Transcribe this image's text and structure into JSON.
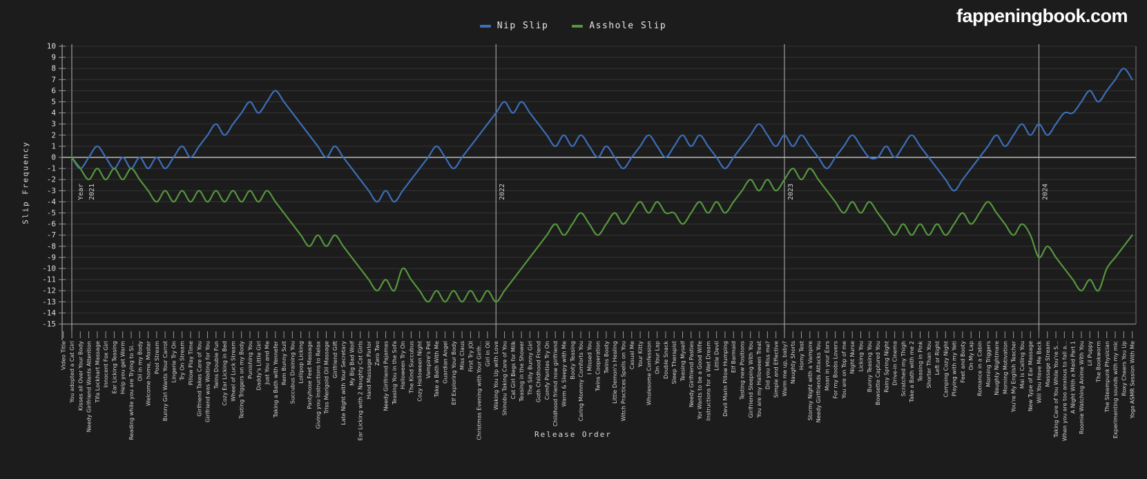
{
  "site": {
    "logo_text": "fappeningbook.com"
  },
  "legend": [
    {
      "label": "Nip Slip",
      "color": "#3d6eb8"
    },
    {
      "label": "Asshole Slip",
      "color": "#55973d"
    }
  ],
  "colors": {
    "background": "#1c1c1c",
    "grid": "#353535",
    "zero_line": "#969696",
    "axis": "#9a9a9a",
    "year_line": "#b8b8b8",
    "tick_text": "#dcdcdc",
    "label_text": "#d6d6d6",
    "nip_slip": "#3d6eb8",
    "asshole_slip": "#55973d"
  },
  "chart_data": {
    "type": "line",
    "title": "",
    "xlabel": "Release Order",
    "ylabel": "Slip Frequency",
    "ylim": [
      -15,
      10
    ],
    "y_ticks": [
      10,
      9,
      8,
      7,
      6,
      5,
      4,
      3,
      2,
      1,
      0,
      -1,
      -2,
      -3,
      -4,
      -5,
      -6,
      -7,
      -8,
      -9,
      -10,
      -11,
      -12,
      -13,
      -14,
      -15
    ],
    "grid": true,
    "legend_position": "top-center",
    "categories": [
      "Video Title",
      "You adopted a Cat Girl",
      "Kisses all Over Your Body",
      "Needy Girlfriend Wants Attention",
      "Tifa Lockhart Massage",
      "Innocent Fox Girl",
      "Ear Licking Teasing",
      "Help you get Warm",
      "Reading while you are Trying to Sl...",
      "Oil in my Body",
      "Welcome home, Master",
      "Pool Stream",
      "Bunny Girl Wants Your Carrot",
      "Lingerie Try On",
      "Try On Stream",
      "Pillow Play Time",
      "Girlfriend Takes Care of You",
      "Girlfriend was Waiting for You",
      "Twins Double Fun",
      "Cozy Ear Licking in Bed",
      "Wheel of Luck Stream",
      "Testing Triggers on my Body",
      "Punishing You",
      "Daddy's Little Girl",
      "Just You and Me",
      "Taking a Bath with Yennefer",
      "Rem Bunny Suit",
      "Succubus Draining You",
      "Lollipop Licking",
      "Pantyhose Feet Massage",
      "Giving you Instructions to Relax",
      "Triss Merigold Oil Massage",
      "Girlfriend Gift",
      "Late Night with Your Secretary",
      "My Big Bad Wolf",
      "Ear Licking with 2 Naughty Cat Girls",
      "Hand Massage Parlor",
      "Zero Two",
      "Needy Girlfriend Pajamas",
      "Teasing You in the Sofa",
      "Halloween Try On",
      "The Kind Succubus",
      "Cozy Halloween Night",
      "Vampire's Pet",
      "Take a Bath With Me",
      "Guardian Angel",
      "Elf Exploring Your Body",
      "Miss Claus",
      "First Try JOI",
      "Christmas Evening with Your Girlfr...",
      "Girl in Oil",
      "Waking You Up with Love",
      "Shinobu Taking Care of You",
      "Cat Girl Begs for Milk",
      "Teasing in the Shower",
      "The Silly Bunny Girl",
      "Goth Childhood Friend",
      "Comfy Panties Try On",
      "Childhood friend now girlfriend",
      "Warm & Sleepy with Me",
      "Booty Teasing",
      "Caring Mommy Comforts You",
      "I Missed You",
      "Twins Cooperation",
      "Twins Booty",
      "Little Demon's Healing",
      "Witch Practices Spells on You",
      "Casual Me",
      "Your Kitty",
      "Wholesome Confession",
      "On Your Lap",
      "Double Snack",
      "Sleep Therapist",
      "Teasing Myself",
      "Needy Girlfriend Pasties",
      "Yor Wants to be a Good Wife",
      "Instructions for a Wet Dream",
      "Little Devil",
      "Devil Marin Pillow Humping",
      "Elf Barmaid",
      "Testing new Positions",
      "Girlfriend Sleeping With You",
      "You are my Halloween Treat",
      "Did you Miss me?",
      "Simple and Effective",
      "Warm me up, baby?",
      "Naughty Shorts",
      "Horny Test",
      "Stormy Night with a Vampire",
      "Needy Girlfriends Attacks You",
      "Moan in your Ears",
      "For my Boobs Lovers",
      "You are on Top of me",
      "Night Nurse",
      "Licking You",
      "Bunny Teasing You",
      "Bowsette Captured You",
      "Rainy Spring Night",
      "Drive-in Cinema",
      "Scratched my Thigh",
      "Take a Bath with me 2",
      "Teasing in Pink",
      "Shorter Than You",
      "Left or Right",
      "Camping Cozy Night",
      "Playing with my Yeti",
      "Feet and Booty",
      "On My Lap",
      "Romance in a Cabin",
      "Morning Triggers",
      "Naughty Nightmare",
      "Morning Motivation",
      "You're My English Teacher",
      "Mai is Calling You",
      "New Type of Ear Massage",
      "Will You Have Me Back",
      "Massage Stream",
      "Taking Care of You While You're S...",
      "When you are too anxious to fall a...",
      "A Night With a Maid Part 1",
      "Roomie Watching Anime With You",
      "Lil Puppy",
      "The Bookworm",
      "The Steampunk Physician",
      "Experimenting sounds with my mic",
      "Roxy Cheers You Up",
      "Yoga ASMR Session With Me"
    ],
    "series": [
      {
        "name": "Nip Slip",
        "color": "#3d6eb8",
        "start_index": 1,
        "values": [
          0,
          -1,
          0,
          1,
          0,
          -1,
          0,
          -1,
          0,
          -1,
          0,
          -1,
          0,
          1,
          0,
          1,
          2,
          3,
          2,
          3,
          4,
          5,
          4,
          5,
          6,
          5,
          4,
          3,
          2,
          1,
          0,
          1,
          0,
          -1,
          -2,
          -3,
          -4,
          -3,
          -4,
          -3,
          -2,
          -1,
          0,
          1,
          0,
          -1,
          0,
          1,
          2,
          3,
          4,
          5,
          4,
          5,
          4,
          3,
          2,
          1,
          2,
          1,
          2,
          1,
          0,
          1,
          0,
          -1,
          0,
          1,
          2,
          1,
          0,
          1,
          2,
          1,
          2,
          1,
          0,
          -1,
          0,
          1,
          2,
          3,
          2,
          1,
          2,
          1,
          2,
          1,
          0,
          -1,
          0,
          1,
          2,
          1,
          0,
          0,
          1,
          0,
          1,
          2,
          1,
          0,
          -1,
          -2,
          -3,
          -2,
          -1,
          0,
          1,
          2,
          1,
          2,
          3,
          2,
          3,
          2,
          3,
          4,
          4,
          5,
          6,
          5,
          6,
          7,
          8,
          7
        ]
      },
      {
        "name": "Asshole Slip",
        "color": "#55973d",
        "start_index": 1,
        "values": [
          0,
          -1,
          -2,
          -1,
          -2,
          -1,
          -2,
          -1,
          -2,
          -3,
          -4,
          -3,
          -4,
          -3,
          -4,
          -3,
          -4,
          -3,
          -4,
          -3,
          -4,
          -3,
          -4,
          -3,
          -4,
          -5,
          -6,
          -7,
          -8,
          -7,
          -8,
          -7,
          -8,
          -9,
          -10,
          -11,
          -12,
          -11,
          -12,
          -10,
          -11,
          -12,
          -13,
          -12,
          -13,
          -12,
          -13,
          -12,
          -13,
          -12,
          -13,
          -12,
          -11,
          -10,
          -9,
          -8,
          -7,
          -6,
          -7,
          -6,
          -5,
          -6,
          -7,
          -6,
          -5,
          -6,
          -5,
          -4,
          -5,
          -4,
          -5,
          -5,
          -6,
          -5,
          -4,
          -5,
          -4,
          -5,
          -4,
          -3,
          -2,
          -3,
          -2,
          -3,
          -2,
          -1,
          -2,
          -1,
          -2,
          -3,
          -4,
          -5,
          -4,
          -5,
          -4,
          -5,
          -6,
          -7,
          -6,
          -7,
          -6,
          -7,
          -6,
          -7,
          -6,
          -5,
          -6,
          -5,
          -4,
          -5,
          -6,
          -7,
          -6,
          -7,
          -9,
          -8,
          -9,
          -10,
          -11,
          -12,
          -11,
          -12,
          -10,
          -9,
          -8,
          -7
        ]
      }
    ],
    "year_markers": [
      {
        "prefix": "Year",
        "label": "2021",
        "index": 1
      },
      {
        "label": "2022",
        "index": 51
      },
      {
        "label": "2023",
        "index": 85
      },
      {
        "label": "2024",
        "index": 115
      }
    ]
  }
}
